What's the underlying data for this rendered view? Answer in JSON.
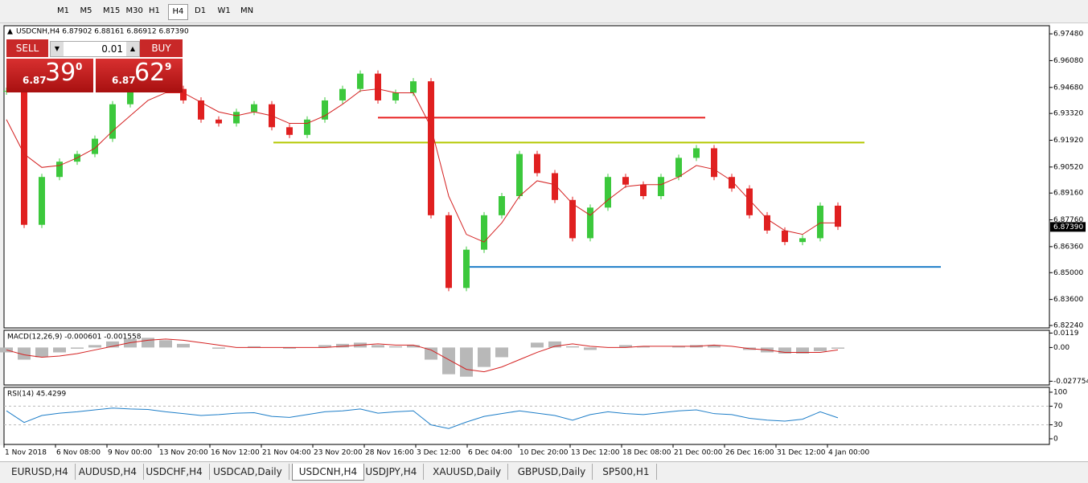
{
  "toolbar": {
    "timeframes": [
      "M1",
      "M5",
      "M15",
      "M30",
      "H1",
      "H4",
      "D1",
      "W1",
      "MN"
    ],
    "active_index": 5
  },
  "trade_panel": {
    "sell": "SELL",
    "buy": "BUY",
    "lot": "0.01",
    "sell_big": "6.87",
    "sell_pips": "39",
    "sell_frac": "0",
    "buy_big": "6.87",
    "buy_pips": "62",
    "buy_frac": "9"
  },
  "chart": {
    "header": "USDCNH,H4  6.87902 6.88161 6.86912 6.87390",
    "price": {
      "ylim": [
        6.8224,
        6.9782
      ],
      "yticks": [
        {
          "value": 6.9748,
          "label": "6.97480"
        },
        {
          "value": 6.9608,
          "label": "6.96080"
        },
        {
          "value": 6.9468,
          "label": "6.94680"
        },
        {
          "value": 6.9332,
          "label": "6.93320"
        },
        {
          "value": 6.9192,
          "label": "6.91920"
        },
        {
          "value": 6.9052,
          "label": "6.90520"
        },
        {
          "value": 6.8916,
          "label": "6.89160"
        },
        {
          "value": 6.8776,
          "label": "6.87760"
        },
        {
          "value": 6.8636,
          "label": "6.86360"
        },
        {
          "value": 6.85,
          "label": "6.85000"
        },
        {
          "value": 6.836,
          "label": "6.83600"
        },
        {
          "value": 6.8224,
          "label": "6.82240"
        }
      ],
      "current": {
        "value": 6.8739,
        "label": "6.87390"
      },
      "closes": [
        6.945,
        6.875,
        6.9,
        6.908,
        6.912,
        6.92,
        6.938,
        6.946,
        6.95,
        6.946,
        6.94,
        6.93,
        6.928,
        6.934,
        6.938,
        6.926,
        6.922,
        6.93,
        6.94,
        6.946,
        6.954,
        6.94,
        6.944,
        6.95,
        6.88,
        6.842,
        6.862,
        6.88,
        6.89,
        6.912,
        6.902,
        6.888,
        6.868,
        6.884,
        6.9,
        6.896,
        6.89,
        6.9,
        6.91,
        6.915,
        6.9,
        6.894,
        6.88,
        6.872,
        6.866,
        6.868,
        6.885,
        6.874
      ],
      "ma": [
        6.93,
        6.912,
        6.905,
        6.906,
        6.91,
        6.915,
        6.924,
        6.932,
        6.94,
        6.944,
        6.944,
        6.939,
        6.934,
        6.932,
        6.934,
        6.932,
        6.928,
        6.928,
        6.932,
        6.938,
        6.945,
        6.946,
        6.944,
        6.944,
        6.926,
        6.89,
        6.87,
        6.866,
        6.876,
        6.89,
        6.898,
        6.896,
        6.886,
        6.88,
        6.888,
        6.895,
        6.896,
        6.896,
        6.9,
        6.906,
        6.904,
        6.898,
        6.888,
        6.878,
        6.872,
        6.87,
        6.876,
        6.876
      ],
      "up_color": "#3cc83c",
      "down_color": "#e02020",
      "ma_color": "#d42020"
    },
    "levels": [
      {
        "value": 6.931,
        "color": "#e82020"
      },
      {
        "value": 6.918,
        "color": "#b5c800"
      },
      {
        "value": 6.853,
        "color": "#1e7ec8"
      }
    ],
    "time_labels": [
      "1 Nov 2018",
      "6 Nov 08:00",
      "9 Nov 00:00",
      "13 Nov 20:00",
      "16 Nov 12:00",
      "21 Nov 04:00",
      "23 Nov 20:00",
      "28 Nov 16:00",
      "3 Dec 12:00",
      "6 Dec 04:00",
      "10 Dec 20:00",
      "13 Dec 12:00",
      "18 Dec 08:00",
      "21 Dec 00:00",
      "26 Dec 16:00",
      "31 Dec 12:00",
      "4 Jan 00:00"
    ],
    "macd": {
      "title": "MACD(12,26,9) -0.000601 -0.001558",
      "ylim": [
        -0.0295,
        0.0135
      ],
      "yticks": [
        0.0119,
        {
          "value": 0,
          "label": "0.00"
        },
        -0.027754
      ],
      "histogram": [
        -0.004,
        -0.01,
        -0.008,
        -0.004,
        -0.001,
        0.002,
        0.005,
        0.007,
        0.008,
        0.006,
        0.003,
        0,
        -0.001,
        0,
        0.001,
        0,
        -0.001,
        0,
        0.002,
        0.003,
        0.004,
        0.002,
        0.001,
        0.002,
        -0.01,
        -0.022,
        -0.024,
        -0.016,
        -0.008,
        0,
        0.004,
        0.005,
        0.001,
        -0.002,
        0,
        0.002,
        0.001,
        0,
        0.001,
        0.002,
        0.002,
        0,
        -0.002,
        -0.004,
        -0.005,
        -0.005,
        -0.003,
        -0.001
      ],
      "signal": [
        -0.002,
        -0.006,
        -0.008,
        -0.007,
        -0.005,
        -0.002,
        0.001,
        0.004,
        0.006,
        0.007,
        0.006,
        0.004,
        0.002,
        0,
        0,
        0,
        0,
        0,
        0,
        0.001,
        0.002,
        0.003,
        0.002,
        0.002,
        -0.002,
        -0.01,
        -0.018,
        -0.02,
        -0.016,
        -0.01,
        -0.004,
        0.001,
        0.003,
        0.001,
        0,
        0,
        0.001,
        0.001,
        0.001,
        0.001,
        0.002,
        0.001,
        -0.001,
        -0.002,
        -0.004,
        -0.004,
        -0.004,
        -0.002
      ]
    },
    "rsi": {
      "title": "RSI(14) 45.4299",
      "ylim": [
        0,
        100
      ],
      "yticks": [
        100,
        70,
        30,
        0
      ],
      "levels": [
        70,
        30
      ],
      "values": [
        60,
        35,
        50,
        55,
        58,
        62,
        66,
        64,
        63,
        58,
        54,
        50,
        52,
        55,
        56,
        48,
        46,
        52,
        58,
        60,
        64,
        55,
        58,
        60,
        30,
        22,
        36,
        48,
        54,
        60,
        55,
        50,
        40,
        52,
        58,
        54,
        52,
        56,
        60,
        62,
        54,
        52,
        44,
        40,
        38,
        42,
        58,
        45
      ]
    }
  },
  "tabs": {
    "items": [
      "EURUSD,H4",
      "AUDUSD,H4",
      "USDCHF,H4",
      "USDCAD,Daily",
      "USDCNH,H4",
      "USDJPY,H4",
      "XAUUSD,Daily",
      "GBPUSD,Daily",
      "SP500,H1"
    ],
    "active_index": 4
  }
}
